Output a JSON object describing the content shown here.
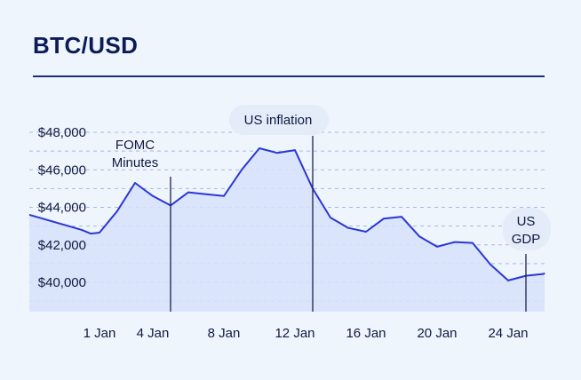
{
  "header": {
    "title": "BTC/USD"
  },
  "colors": {
    "line": "#2b36d6",
    "area": "#d6e2fb",
    "grid": "#a9b9e0",
    "annotation_bubble": "#e3ecf8",
    "rule": "#16307a"
  },
  "chart_data": {
    "type": "area",
    "title": "BTC/USD",
    "xlabel": "",
    "ylabel": "",
    "x": [
      -1,
      0,
      0.5,
      1,
      2,
      3,
      4,
      5,
      6,
      7,
      8,
      9,
      10,
      11,
      12,
      13,
      14,
      15,
      16,
      17,
      18,
      19,
      20,
      21,
      22,
      23,
      24,
      25,
      26,
      27
    ],
    "values": [
      43600,
      42800,
      42600,
      42650,
      43800,
      45300,
      44600,
      44100,
      44800,
      44700,
      44600,
      46000,
      47150,
      46900,
      47050,
      45000,
      43450,
      42900,
      42700,
      43400,
      43500,
      42450,
      41900,
      42150,
      42100,
      40950,
      40100,
      40350,
      40450,
      40500
    ],
    "xlim": [
      -1,
      27
    ],
    "ylim": [
      38500,
      49000
    ],
    "x_ticks": [
      {
        "x": 1,
        "label": "1 Jan"
      },
      {
        "x": 4,
        "label": "4 Jan"
      },
      {
        "x": 8,
        "label": "8 Jan"
      },
      {
        "x": 12,
        "label": "12 Jan"
      },
      {
        "x": 16,
        "label": "16 Jan"
      },
      {
        "x": 20,
        "label": "20 Jan"
      },
      {
        "x": 24,
        "label": "24 Jan"
      }
    ],
    "y_ticks": [
      {
        "y": 40000,
        "label": "$40,000"
      },
      {
        "y": 42000,
        "label": "$42,000"
      },
      {
        "y": 44000,
        "label": "$44,000"
      },
      {
        "y": 46000,
        "label": "$46,000"
      },
      {
        "y": 48000,
        "label": "$48,000"
      }
    ],
    "grid": true,
    "annotations": [
      {
        "x": 5,
        "lines": [
          "FOMC",
          "Minutes"
        ],
        "boxed": false
      },
      {
        "x": 13,
        "lines": [
          "US inflation"
        ],
        "boxed": true
      },
      {
        "x": 27,
        "lines": [
          "US",
          "GDP"
        ],
        "boxed": true
      }
    ]
  }
}
